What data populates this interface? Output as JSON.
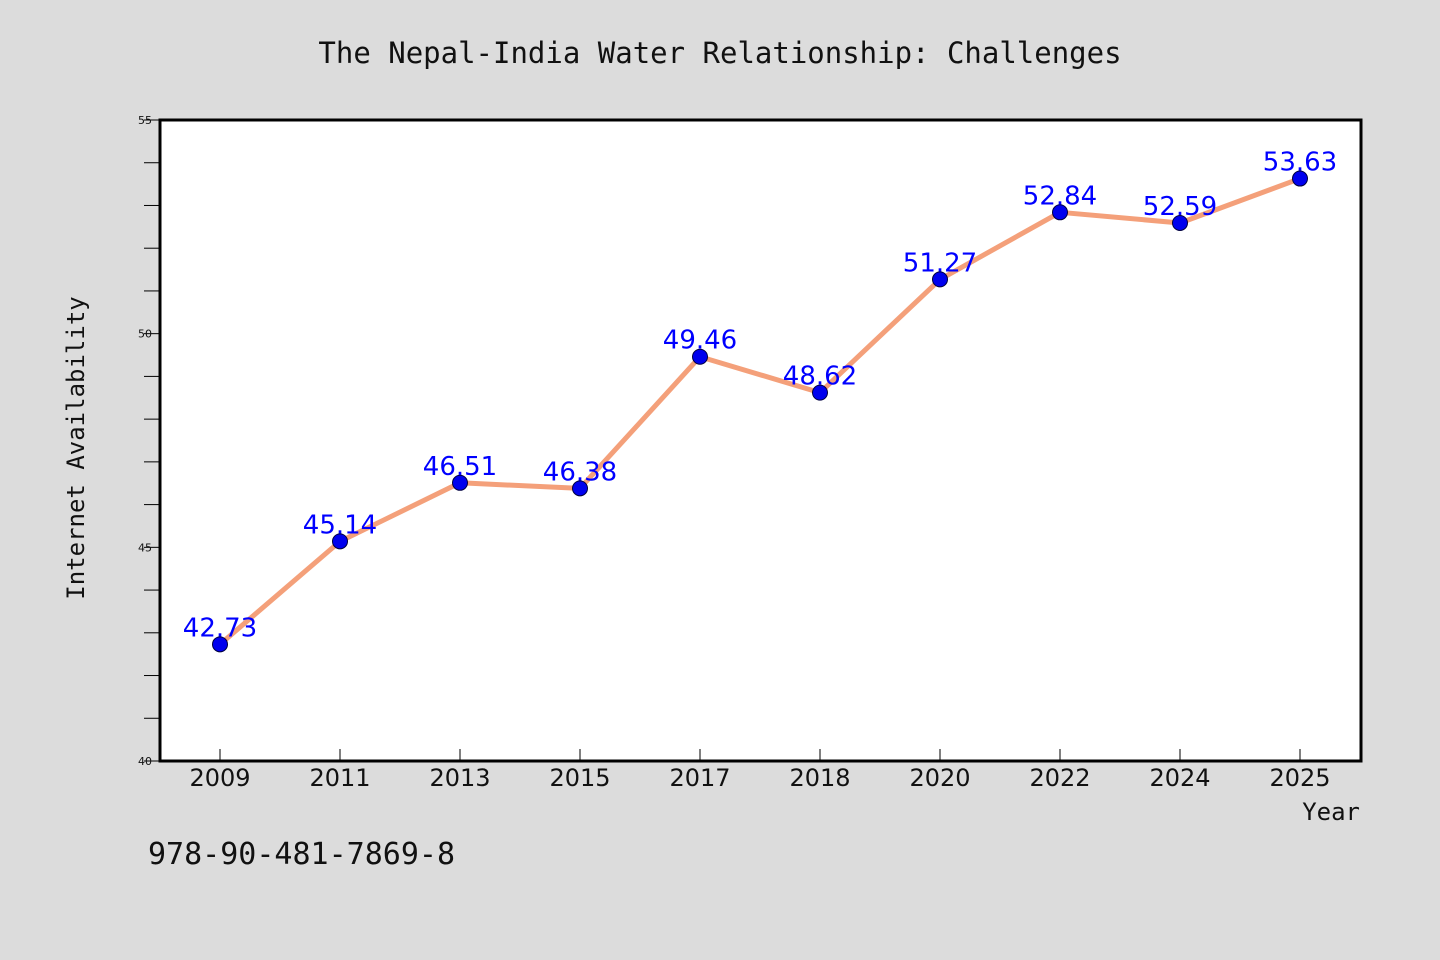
{
  "chart_data": {
    "type": "line",
    "title": "The Nepal-India Water Relationship: Challenges",
    "xlabel": "Year",
    "ylabel": "Internet Availability",
    "categories": [
      "2009",
      "2011",
      "2013",
      "2015",
      "2017",
      "2018",
      "2020",
      "2022",
      "2024",
      "2025"
    ],
    "series": [
      {
        "values": [
          42.73,
          45.14,
          46.51,
          46.38,
          49.46,
          48.62,
          51.27,
          52.84,
          52.59,
          53.63
        ],
        "line_color": "#f4a07a",
        "marker_color": "#0000ee"
      }
    ],
    "data_labels": [
      "42.73",
      "45.14",
      "46.51",
      "46.38",
      "49.46",
      "48.62",
      "51.27",
      "52.84",
      "52.59",
      "53.63"
    ],
    "data_label_color": "#0000ff",
    "ylim": [
      40,
      55
    ],
    "yticks": [
      "40",
      "45",
      "50",
      "55"
    ],
    "grid": false,
    "legend": "none"
  },
  "caption": "978-90-481-7869-8",
  "colors": {
    "background": "#dcdcdc",
    "plot_background": "#ffffff",
    "axis": "#000000"
  }
}
